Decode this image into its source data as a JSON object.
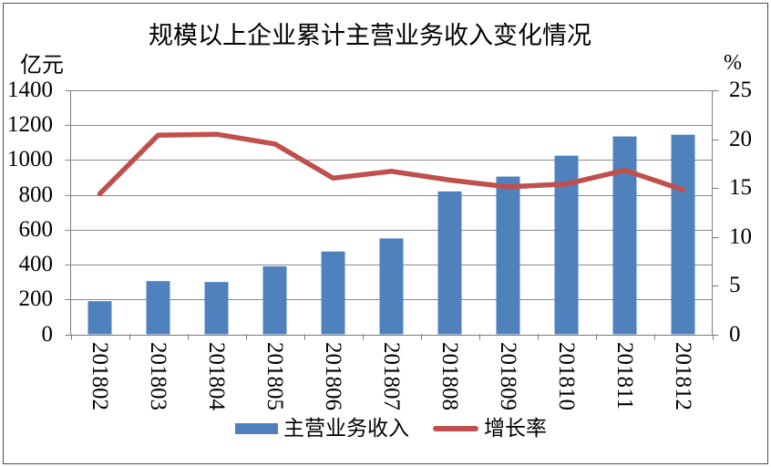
{
  "chart_data": {
    "type": "bar+line",
    "title": "规模以上企业累计主营业务收入变化情况",
    "categories": [
      "201802",
      "201803",
      "201804",
      "201805",
      "201806",
      "201807",
      "201808",
      "201809",
      "201810",
      "201811",
      "201812"
    ],
    "series": [
      {
        "name": "主营业务收入",
        "type": "bar",
        "axis": "left",
        "color": "#4f81bd",
        "values": [
          190,
          305,
          300,
          390,
          475,
          550,
          820,
          905,
          1025,
          1135,
          1145
        ]
      },
      {
        "name": "增长率",
        "type": "line",
        "axis": "right",
        "color": "#c0504d",
        "values": [
          14.4,
          20.4,
          20.5,
          19.5,
          16.0,
          16.7,
          15.8,
          15.1,
          15.4,
          16.8,
          14.8
        ]
      }
    ],
    "left_axis": {
      "unit": "亿元",
      "min": 0,
      "max": 1400,
      "ticks": [
        1400,
        1200,
        1000,
        800,
        600,
        400,
        200,
        0
      ]
    },
    "right_axis": {
      "unit": "%",
      "min": 0,
      "max": 25,
      "ticks": [
        25,
        20,
        15,
        10,
        5,
        0
      ]
    },
    "grid": "horizontal",
    "legend_position": "bottom"
  },
  "colors": {
    "grid": "#8a8a8a",
    "axis": "#7a7a7a",
    "frame": "#4d4d4d",
    "background": "#ffffff",
    "text": "#000000"
  }
}
